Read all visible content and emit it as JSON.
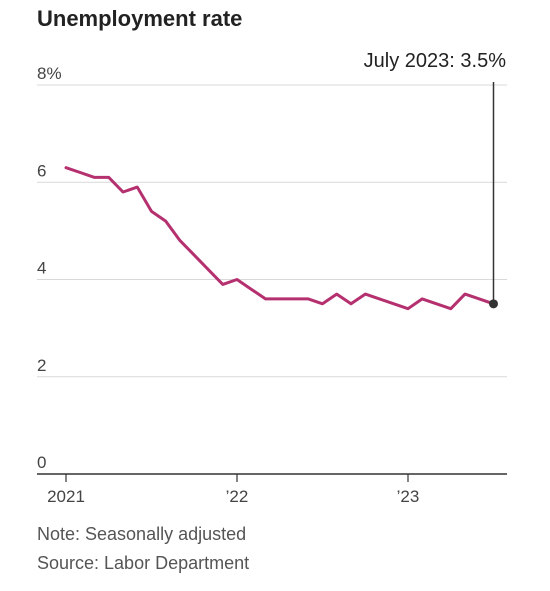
{
  "chart_data": {
    "type": "line",
    "title": "Unemployment rate",
    "xlabel": "",
    "ylabel": "",
    "ylim": [
      0,
      8
    ],
    "grid": true,
    "y_ticks": [
      {
        "value": 8,
        "label": "8%"
      },
      {
        "value": 6,
        "label": "6"
      },
      {
        "value": 4,
        "label": "4"
      },
      {
        "value": 2,
        "label": "2"
      },
      {
        "value": 0,
        "label": "0"
      }
    ],
    "x_ticks": [
      {
        "value": 2021.0,
        "label": "2021"
      },
      {
        "value": 2022.0,
        "label": "’22"
      },
      {
        "value": 2023.0,
        "label": "’23"
      }
    ],
    "xlim": [
      2020.9,
      2023.6
    ],
    "x": [
      "2021-01",
      "2021-02",
      "2021-03",
      "2021-04",
      "2021-05",
      "2021-06",
      "2021-07",
      "2021-08",
      "2021-09",
      "2021-10",
      "2021-11",
      "2021-12",
      "2022-01",
      "2022-02",
      "2022-03",
      "2022-04",
      "2022-05",
      "2022-06",
      "2022-07",
      "2022-08",
      "2022-09",
      "2022-10",
      "2022-11",
      "2022-12",
      "2023-01",
      "2023-02",
      "2023-03",
      "2023-04",
      "2023-05",
      "2023-06",
      "2023-07"
    ],
    "series": [
      {
        "color": "#b5306f",
        "values": [
          6.3,
          6.2,
          6.1,
          6.1,
          5.8,
          5.9,
          5.4,
          5.2,
          4.8,
          4.5,
          4.2,
          3.9,
          4.0,
          3.8,
          3.6,
          3.6,
          3.6,
          3.6,
          3.5,
          3.7,
          3.5,
          3.7,
          3.6,
          3.5,
          3.4,
          3.6,
          3.5,
          3.4,
          3.7,
          3.6,
          3.5
        ]
      }
    ],
    "annotation": {
      "text": "July 2023: 3.5%",
      "x": "2023-07",
      "y": 3.5
    }
  },
  "notes": {
    "note": "Note: Seasonally adjusted",
    "source": "Source: Labor Department"
  },
  "colors": {
    "line": "#b5306f",
    "grid": "#d9d9d9",
    "axis": "#333333",
    "marker": "#333333"
  }
}
